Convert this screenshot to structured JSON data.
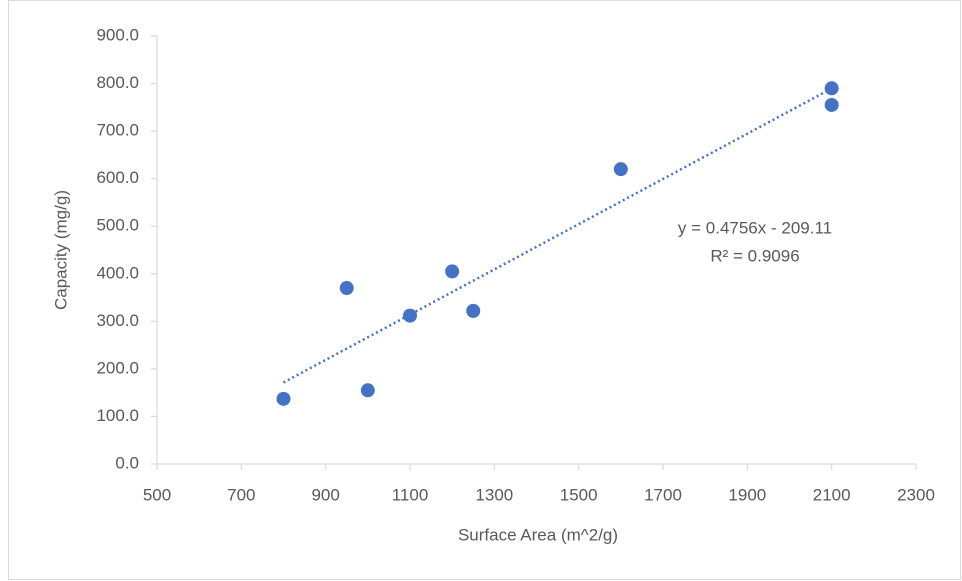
{
  "chart_data": {
    "type": "scatter",
    "x_label": "Surface Area (m^2/g)",
    "y_label": "Capacity (mg/g)",
    "series": [
      {
        "color": "#4472c4",
        "x": [
          800,
          950,
          1000,
          1100,
          1200,
          1250,
          1600,
          2100,
          2100
        ],
        "values": [
          137,
          370,
          155,
          312,
          405,
          322,
          620,
          790,
          755
        ]
      }
    ],
    "trendline": {
      "slope": 0.4756,
      "intercept": -209.11,
      "equation": "y = 0.4756x - 209.11",
      "r_squared": "R² = 0.9096"
    },
    "xlim": [
      500,
      2300
    ],
    "xticks": [
      500,
      700,
      900,
      1100,
      1300,
      1500,
      1700,
      1900,
      2100,
      2300
    ],
    "ylim": [
      0,
      900
    ],
    "yticks": [
      {
        "value": 0,
        "label": "0.0"
      },
      {
        "value": 100,
        "label": "100.0"
      },
      {
        "value": 200,
        "label": "200.0"
      },
      {
        "value": 300,
        "label": "300.0"
      },
      {
        "value": 400,
        "label": "400.0"
      },
      {
        "value": 500,
        "label": "500.0"
      },
      {
        "value": 600,
        "label": "600.0"
      },
      {
        "value": 700,
        "label": "700.0"
      },
      {
        "value": 800,
        "label": "800.0"
      },
      {
        "value": 900,
        "label": "900.0"
      }
    ]
  }
}
